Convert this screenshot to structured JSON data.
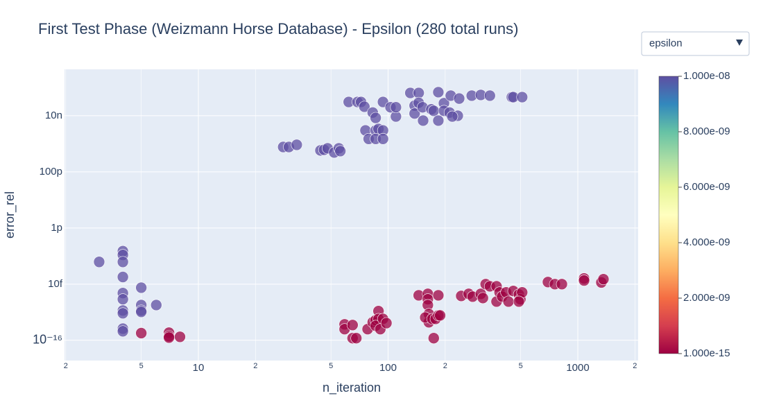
{
  "chart_data": {
    "type": "scatter",
    "title": "First Test Phase (Weizmann Horse Database) - Epsilon  (280 total runs)",
    "x_label": "n_iteration",
    "y_label": "error_rel",
    "log_x": true,
    "log_y": true,
    "grid": true,
    "xlim": [
      1.97,
      2080
    ],
    "ylim": [
      1.9e-17,
      4.5e-07
    ],
    "xticks": [
      2,
      5,
      10,
      {
        "value": 20,
        "label": "2"
      },
      {
        "value": 50,
        "label": "5"
      },
      100,
      {
        "value": 200,
        "label": "2"
      },
      {
        "value": 500,
        "label": "5"
      },
      1000,
      {
        "value": 2000,
        "label": "2"
      }
    ],
    "yticks": [
      {
        "value": 1e-16,
        "label": "10⁻¹⁶"
      },
      {
        "value": 1e-14,
        "label": "10f"
      },
      {
        "value": 1e-12,
        "label": "1p"
      },
      {
        "value": 1e-10,
        "label": "100p"
      },
      {
        "value": 1e-08,
        "label": "10n"
      }
    ],
    "x": [
      62,
      69,
      72,
      75,
      83,
      86,
      76,
      79,
      86,
      89,
      94,
      86,
      94,
      94,
      103,
      110,
      110,
      131,
      145,
      138,
      145,
      138,
      152,
      169,
      153,
      184,
      197,
      174,
      184,
      197,
      211,
      214,
      237,
      233,
      218,
      276,
      308,
      344,
      449,
      457,
      509,
      28,
      30,
      33,
      44,
      46,
      48,
      52,
      55,
      56,
      3,
      4,
      4,
      4,
      4,
      4,
      4,
      4,
      4,
      4,
      4,
      5,
      5,
      5,
      5,
      6,
      5,
      7,
      7,
      7,
      8,
      59,
      59,
      65,
      65,
      68,
      78,
      83,
      86,
      89,
      89,
      86,
      94,
      91,
      98,
      145,
      162,
      162,
      162,
      164,
      164,
      157,
      171,
      184,
      178,
      184,
      188,
      174,
      243,
      266,
      279,
      308,
      327,
      344,
      316,
      373,
      373,
      387,
      399,
      419,
      431,
      457,
      489,
      498,
      509,
      489,
      696,
      757,
      824,
      1079,
      1079,
      1331,
      1365
    ],
    "values": [
      3.1e-08,
      3.1e-08,
      3.1e-08,
      2.1e-08,
      1.3e-08,
      8.4e-09,
      3e-09,
      1.5e-09,
      3e-09,
      3.4e-09,
      3e-09,
      1.5e-09,
      1.5e-09,
      3.1e-08,
      2e-08,
      9.4e-09,
      2e-08,
      6.5e-08,
      6.5e-08,
      2.3e-08,
      2.9e-08,
      1.2e-08,
      2e-08,
      1.7e-08,
      6.7e-09,
      6.9e-08,
      2.8e-08,
      1.5e-08,
      6.7e-09,
      1.5e-08,
      1.3e-08,
      5.2e-08,
      4.1e-08,
      1e-08,
      9.4e-09,
      5.2e-08,
      5.5e-08,
      5.2e-08,
      4.6e-08,
      4.6e-08,
      4.6e-08,
      7.7e-10,
      7.7e-10,
      9.2e-10,
      5.8e-10,
      6.1e-10,
      6.9e-10,
      4.9e-10,
      6.9e-10,
      5.5e-10,
      6.2e-14,
      1.5e-13,
      1.1e-13,
      6.2e-14,
      1.8e-14,
      4.8e-15,
      2.9e-15,
      1.15e-15,
      9.2e-16,
      2.6e-16,
      2.1e-16,
      7.5e-15,
      1.8e-15,
      1.15e-15,
      1.03e-15,
      1.8e-15,
      1.8e-16,
      1.87e-16,
      1.4e-16,
      1.25e-16,
      1.33e-16,
      3.7e-16,
      2.5e-16,
      3.5e-16,
      1.19e-16,
      1.19e-16,
      2.5e-16,
      4.4e-16,
      5.2e-16,
      1.1e-15,
      5.8e-16,
      3.3e-16,
      5.8e-16,
      2.5e-16,
      4.1e-16,
      4e-15,
      4.5e-15,
      2.9e-15,
      1.8e-15,
      8.7e-16,
      4.4e-16,
      6.5e-16,
      5.8e-16,
      4e-15,
      5.8e-16,
      7.7e-16,
      7.7e-16,
      1.19e-16,
      3.8e-15,
      4.5e-15,
      3.6e-15,
      4.5e-15,
      1e-14,
      8.4e-15,
      3.2e-15,
      8.4e-15,
      2.4e-15,
      5.1e-15,
      3.6e-15,
      5.1e-15,
      2.4e-15,
      5.7e-15,
      4.3e-15,
      2.9e-15,
      5.1e-15,
      2.4e-15,
      1.19e-14,
      1e-14,
      1e-14,
      1.6e-14,
      1.35e-14,
      1.15e-14,
      1.5e-14
    ],
    "epsilon": [
      1e-08,
      1e-08,
      1e-08,
      1e-08,
      1e-08,
      1e-08,
      1e-08,
      1e-08,
      1e-08,
      1e-08,
      1e-08,
      1e-08,
      1e-08,
      1e-08,
      1e-08,
      1e-08,
      1e-08,
      1e-08,
      1e-08,
      1e-08,
      1e-08,
      1e-08,
      1e-08,
      1e-08,
      1e-08,
      1e-08,
      1e-08,
      1e-08,
      1e-08,
      1e-08,
      1e-08,
      1e-08,
      1e-08,
      1e-08,
      1e-08,
      1e-08,
      1e-08,
      1e-08,
      1e-08,
      1e-08,
      1e-08,
      1e-08,
      1e-08,
      1e-08,
      1e-08,
      1e-08,
      1e-08,
      1e-08,
      1e-08,
      1e-08,
      1e-08,
      1e-08,
      1e-08,
      1e-08,
      1e-08,
      1e-08,
      1e-08,
      1e-08,
      1e-08,
      1e-08,
      1e-08,
      1e-08,
      1e-08,
      1e-08,
      1e-08,
      1e-08,
      1e-15,
      1e-15,
      1e-15,
      1e-15,
      1e-15,
      1e-15,
      1e-15,
      1e-15,
      1e-15,
      1e-15,
      1e-15,
      1e-15,
      1e-15,
      1e-15,
      1e-15,
      1e-15,
      1e-15,
      1e-15,
      1e-15,
      1e-15,
      1e-15,
      1e-15,
      1e-15,
      1e-15,
      1e-15,
      1e-15,
      1e-15,
      1e-15,
      1e-15,
      1e-15,
      1e-15,
      1e-15,
      1e-15,
      1e-15,
      1e-15,
      1e-15,
      1e-15,
      1e-15,
      1e-15,
      1e-15,
      1e-15,
      1e-15,
      1e-15,
      1e-15,
      1e-15,
      1e-15,
      1e-15,
      1e-15,
      1e-15,
      1e-15,
      1e-15,
      1e-15,
      1e-15,
      1e-15,
      1e-15,
      1e-15,
      1e-15
    ],
    "colorscale": [
      "#9e0142",
      "#d53e4f",
      "#f46d43",
      "#fdae61",
      "#fee08b",
      "#ffffbf",
      "#e6f598",
      "#abdda4",
      "#66c2a5",
      "#3288bd",
      "#5e4fa2"
    ],
    "colorbar_lim": [
      1e-15,
      1e-08
    ],
    "colorbar_ticks": [
      {
        "value": 1e-15,
        "label": "1.000e-15"
      },
      {
        "value": 2e-09,
        "label": "2.000e-09"
      },
      {
        "value": 4e-09,
        "label": "4.000e-09"
      },
      {
        "value": 6e-09,
        "label": "6.000e-09"
      },
      {
        "value": 8e-09,
        "label": "8.000e-09"
      },
      {
        "value": 1e-08,
        "label": "1.000e-08"
      }
    ]
  },
  "dropdown": {
    "label": "epsilon"
  }
}
